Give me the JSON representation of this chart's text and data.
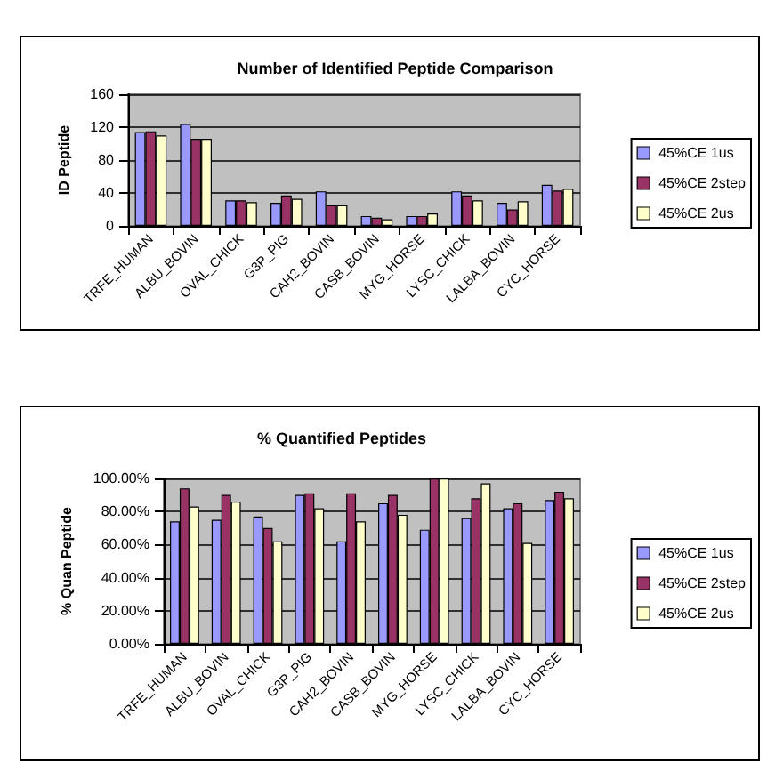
{
  "chart_data": [
    {
      "type": "bar",
      "title": "Number of Identified Peptide Comparison",
      "ylabel": "ID Peptide",
      "categories": [
        "TRFE_HUMAN",
        "ALBU_BOVIN",
        "OVAL_CHICK",
        "G3P_PIG",
        "CAH2_BOVIN",
        "CASB_BOVIN",
        "MYG_HORSE",
        "LYSC_CHICK",
        "LALBA_BOVIN",
        "CYC_HORSE"
      ],
      "series": [
        {
          "name": "45%CE 1us",
          "color": "#9999ff",
          "values": [
            114,
            124,
            31,
            28,
            42,
            12,
            12,
            42,
            28,
            50
          ]
        },
        {
          "name": "45%CE 2step",
          "color": "#993366",
          "values": [
            115,
            106,
            31,
            37,
            25,
            10,
            12,
            37,
            20,
            43
          ]
        },
        {
          "name": "45%CE 2us",
          "color": "#ffffcc",
          "values": [
            110,
            106,
            29,
            33,
            25,
            8,
            15,
            31,
            30,
            45
          ]
        }
      ],
      "ylim": [
        0,
        160
      ],
      "yticks": [
        0,
        40,
        80,
        120,
        160
      ],
      "grid": "y",
      "legend": "right"
    },
    {
      "type": "bar",
      "title": "% Quantified Peptides",
      "ylabel": "% Quan Peptide",
      "categories": [
        "TRFE_HUMAN",
        "ALBU_BOVIN",
        "OVAL_CHICK",
        "G3P_PIG",
        "CAH2_BOVIN",
        "CASB_BOVIN",
        "MYG_HORSE",
        "LYSC_CHICK",
        "LALBA_BOVIN",
        "CYC_HORSE"
      ],
      "series": [
        {
          "name": "45%CE 1us",
          "color": "#9999ff",
          "values": [
            74,
            75,
            77,
            90,
            62,
            85,
            69,
            76,
            82,
            87
          ]
        },
        {
          "name": "45%CE 2step",
          "color": "#993366",
          "values": [
            94,
            90,
            70,
            91,
            91,
            90,
            100,
            88,
            85,
            92
          ]
        },
        {
          "name": "45%CE 2us",
          "color": "#ffffcc",
          "values": [
            83,
            86,
            62,
            82,
            74,
            78,
            100,
            97,
            61,
            88
          ]
        }
      ],
      "ylim": [
        0,
        100
      ],
      "yticks": [
        {
          "value": 0,
          "label": "0.00%"
        },
        {
          "value": 20,
          "label": "20.00%"
        },
        {
          "value": 40,
          "label": "40.00%"
        },
        {
          "value": 60,
          "label": "60.00%"
        },
        {
          "value": 80,
          "label": "80.00%"
        },
        {
          "value": 100,
          "label": "100.00%"
        }
      ],
      "grid": "y",
      "legend": "right"
    }
  ]
}
